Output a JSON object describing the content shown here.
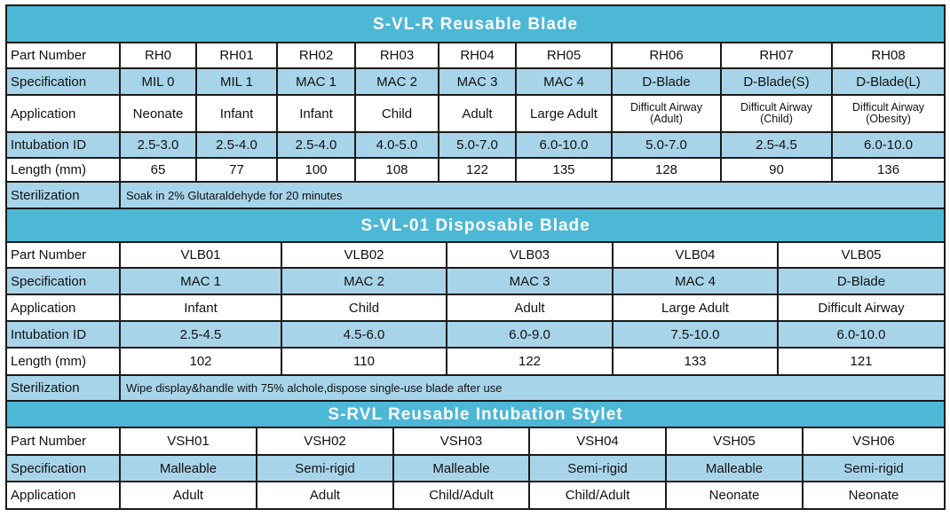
{
  "sections": {
    "reusable": {
      "title": "S-VL-R  Reusable Blade",
      "part_number": {
        "label": "Part Number",
        "values": [
          "RH0",
          "RH01",
          "RH02",
          "RH03",
          "RH04",
          "RH05",
          "RH06",
          "RH07",
          "RH08"
        ]
      },
      "specification": {
        "label": "Specification",
        "values": [
          "MIL 0",
          "MIL 1",
          "MAC 1",
          "MAC 2",
          "MAC 3",
          "MAC 4",
          "D-Blade",
          "D-Blade(S)",
          "D-Blade(L)"
        ]
      },
      "application": {
        "label": "Application",
        "values": [
          "Neonate",
          "Infant",
          "Infant",
          "Child",
          "Adult",
          "Large Adult",
          "Difficult Airway (Adult)",
          "Difficult Airway (Child)",
          "Difficult Airway (Obesity)"
        ]
      },
      "intubation": {
        "label": "Intubation ID",
        "values": [
          "2.5-3.0",
          "2.5-4.0",
          "2.5-4.0",
          "4.0-5.0",
          "5.0-7.0",
          "6.0-10.0",
          "5.0-7.0",
          "2.5-4.5",
          "6.0-10.0"
        ]
      },
      "length": {
        "label": "Length (mm)",
        "values": [
          "65",
          "77",
          "100",
          "108",
          "122",
          "135",
          "128",
          "90",
          "136"
        ]
      },
      "sterilization": {
        "label": "Sterilization",
        "text": "Soak in 2% Glutaraldehyde for 20 minutes"
      }
    },
    "disposable": {
      "title": "S-VL-01 Disposable Blade",
      "part_number": {
        "label": "Part Number",
        "values": [
          "VLB01",
          "VLB02",
          "VLB03",
          "VLB04",
          "VLB05"
        ]
      },
      "specification": {
        "label": "Specification",
        "values": [
          "MAC 1",
          "MAC 2",
          "MAC 3",
          "MAC 4",
          "D-Blade"
        ]
      },
      "application": {
        "label": "Application",
        "values": [
          "Infant",
          "Child",
          "Adult",
          "Large Adult",
          "Difficult Airway"
        ]
      },
      "intubation": {
        "label": "Intubation ID",
        "values": [
          "2.5-4.5",
          "4.5-6.0",
          "6.0-9.0",
          "7.5-10.0",
          "6.0-10.0"
        ]
      },
      "length": {
        "label": "Length (mm)",
        "values": [
          "102",
          "110",
          "122",
          "133",
          "121"
        ]
      },
      "sterilization": {
        "label": "Sterilization",
        "text": "Wipe display&handle with 75% alchole,dispose single-use blade after use"
      }
    },
    "stylet": {
      "title": "S-RVL Reusable Intubation Stylet",
      "part_number": {
        "label": "Part Number",
        "values": [
          "VSH01",
          "VSH02",
          "VSH03",
          "VSH04",
          "VSH05",
          "VSH06"
        ]
      },
      "specification": {
        "label": "Specification",
        "values": [
          "Malleable",
          "Semi-rigid",
          "Malleable",
          "Semi-rigid",
          "Malleable",
          "Semi-rigid"
        ]
      },
      "application": {
        "label": "Application",
        "values": [
          "Adult",
          "Adult",
          "Child/Adult",
          "Child/Adult",
          "Neonate",
          "Neonate"
        ]
      }
    }
  },
  "colors": {
    "title_bg": "#4db7d6",
    "row_blue": "#a8d4ea",
    "border": "#1a1a1a"
  }
}
